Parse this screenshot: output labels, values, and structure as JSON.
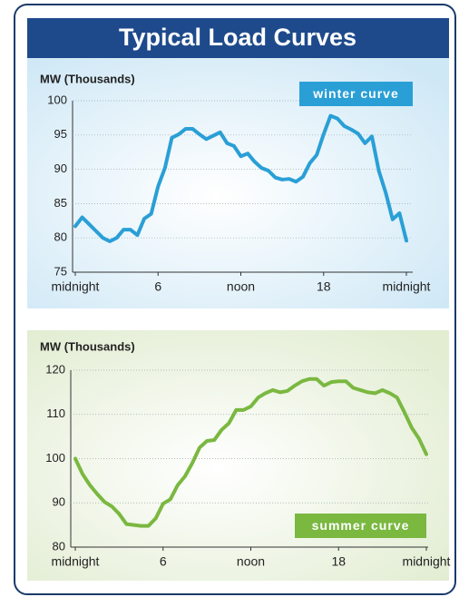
{
  "header": {
    "title": "Typical Load Curves"
  },
  "chart_data": [
    {
      "type": "line",
      "y_label": "MW (Thousands)",
      "annotation": "winter curve",
      "x": [
        0,
        0.5,
        1,
        1.5,
        2,
        2.5,
        3,
        3.5,
        4,
        4.5,
        5,
        5.5,
        6,
        6.5,
        7,
        7.5,
        8,
        8.5,
        9,
        9.5,
        10,
        10.5,
        11,
        11.5,
        12,
        12.5,
        13,
        13.5,
        14,
        14.5,
        15,
        15.5,
        16,
        16.5,
        17,
        17.5,
        18,
        18.5,
        19,
        19.5,
        20,
        20.5,
        21,
        21.5,
        22,
        22.5,
        23,
        23.5,
        24
      ],
      "series": [
        {
          "color": "#2a9fd6",
          "values": [
            81.7,
            83,
            82,
            81,
            80,
            79.5,
            80,
            81.2,
            81.2,
            80.4,
            82.8,
            83.5,
            87.5,
            90.2,
            94.6,
            95.1,
            95.9,
            95.9,
            95.1,
            94.4,
            94.9,
            95.4,
            93.8,
            93.4,
            91.9,
            92.3,
            91.1,
            90.2,
            89.8,
            88.8,
            88.5,
            88.6,
            88.2,
            88.9,
            90.9,
            92.1,
            95.1,
            97.8,
            97.4,
            96.3,
            95.8,
            95.2,
            93.8,
            94.8,
            89.8,
            86.6,
            82.7,
            83.6,
            79.6
          ]
        }
      ],
      "xlim": [
        0,
        24
      ],
      "xticks": [
        {
          "value": 0,
          "label": "midnight"
        },
        6,
        {
          "value": 12,
          "label": "noon"
        },
        18,
        {
          "value": 24,
          "label": "midnight"
        }
      ],
      "ylim": [
        75,
        100
      ],
      "yticks": [
        75,
        80,
        85,
        90,
        95,
        100
      ],
      "grid": true
    },
    {
      "type": "line",
      "y_label": "MW (Thousands)",
      "annotation": "summer curve",
      "x": [
        0,
        0.5,
        1,
        1.5,
        2,
        2.5,
        3,
        3.5,
        4,
        4.5,
        5,
        5.5,
        6,
        6.5,
        7,
        7.5,
        8,
        8.5,
        9,
        9.5,
        10,
        10.5,
        11,
        11.5,
        12,
        12.5,
        13,
        13.5,
        14,
        14.5,
        15,
        15.5,
        16,
        16.5,
        17,
        17.5,
        18,
        18.5,
        19,
        19.5,
        20,
        20.5,
        21,
        21.5,
        22,
        22.5,
        23,
        23.5,
        24
      ],
      "series": [
        {
          "color": "#7ab840",
          "values": [
            100,
            96.5,
            94,
            92,
            90.2,
            89.2,
            87.5,
            85.2,
            85,
            84.8,
            84.8,
            86.5,
            89.8,
            90.8,
            94,
            96,
            99,
            102.5,
            104,
            104.2,
            106.5,
            108,
            111,
            111,
            111.8,
            113.8,
            114.8,
            115.5,
            115,
            115.3,
            116.5,
            117.5,
            118,
            118,
            116.5,
            117.3,
            117.5,
            117.5,
            116,
            115.5,
            115,
            114.8,
            115.5,
            114.8,
            113.8,
            110.5,
            107,
            104.5,
            101
          ]
        }
      ],
      "xlim": [
        0,
        24
      ],
      "xticks": [
        {
          "value": 0,
          "label": "midnight"
        },
        6,
        {
          "value": 12,
          "label": "noon"
        },
        18,
        {
          "value": 24,
          "label": "midnight"
        }
      ],
      "ylim": [
        80,
        120
      ],
      "yticks": [
        80,
        90,
        100,
        110,
        120
      ],
      "grid": true
    }
  ]
}
